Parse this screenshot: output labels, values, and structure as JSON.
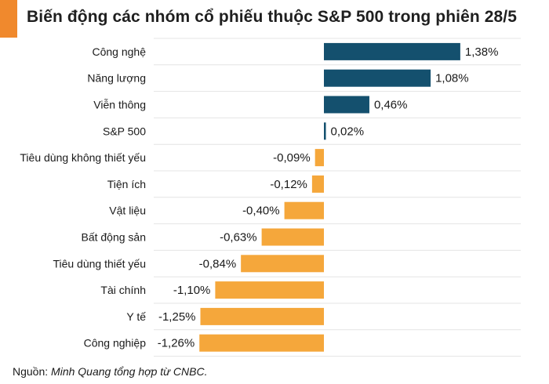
{
  "title": "Biến động các nhóm cổ phiếu thuộc S&P 500 trong phiên 28/5",
  "source": {
    "prefix": "Nguồn: ",
    "text": "Minh Quang tổng hợp từ CNBC."
  },
  "colors": {
    "accent": "#F0892D",
    "positive": "#14506E",
    "negative": "#F5A73B",
    "gridline": "#E4E4E4"
  },
  "chart_data": {
    "type": "bar",
    "orientation": "horizontal",
    "title": "Biến động các nhóm cổ phiếu thuộc S&P 500 trong phiên 28/5",
    "xlabel": "",
    "ylabel": "",
    "unit": "%",
    "grid": true,
    "categories": [
      "Công nghệ",
      "Năng lượng",
      "Viễn thông",
      "S&P 500",
      "Tiêu dùng không thiết yếu",
      "Tiện ích",
      "Vật liệu",
      "Bất động sản",
      "Tiêu dùng thiết yếu",
      "Tài chính",
      "Y tế",
      "Công nghiệp"
    ],
    "values": [
      1.38,
      1.08,
      0.46,
      0.02,
      -0.09,
      -0.12,
      -0.4,
      -0.63,
      -0.84,
      -1.1,
      -1.25,
      -1.26
    ],
    "value_labels": [
      "1,38%",
      "1,08%",
      "0,46%",
      "0,02%",
      "-0,09%",
      "-0,12%",
      "-0,40%",
      "-0,63%",
      "-0,84%",
      "-1,10%",
      "-1,25%",
      "-1,26%"
    ]
  }
}
